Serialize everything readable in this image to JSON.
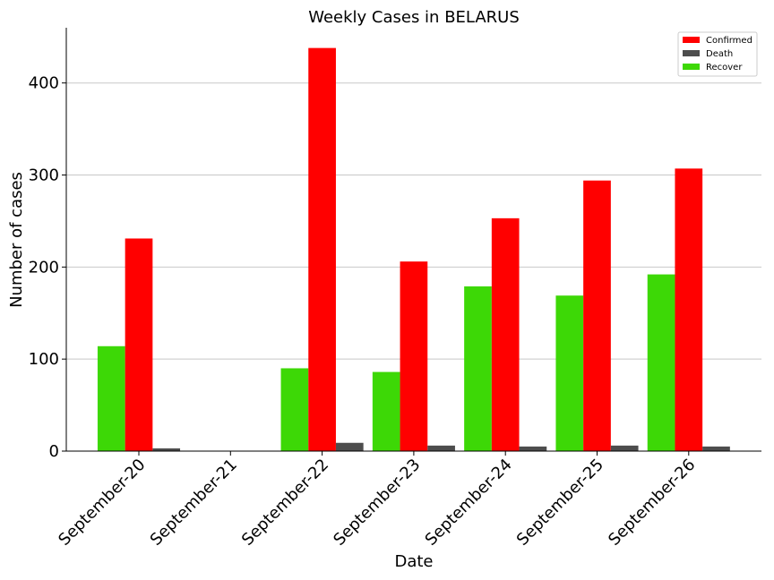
{
  "chart_data": {
    "type": "bar",
    "title": "Weekly Cases in BELARUS",
    "xlabel": "Date",
    "ylabel": "Number of cases",
    "categories": [
      "September-20",
      "September-21",
      "September-22",
      "September-23",
      "September-24",
      "September-25",
      "September-26"
    ],
    "series": [
      {
        "name": "Recover",
        "color": "#3dd806",
        "values": [
          114,
          0,
          90,
          86,
          179,
          169,
          192
        ]
      },
      {
        "name": "Confirmed",
        "color": "#ff0000",
        "values": [
          231,
          0,
          438,
          206,
          253,
          294,
          307
        ]
      },
      {
        "name": "Death",
        "color": "#4d4d4d",
        "values": [
          3,
          0,
          9,
          6,
          5,
          6,
          5
        ]
      }
    ],
    "legend_order": [
      "Confirmed",
      "Death",
      "Recover"
    ],
    "yticks": [
      0,
      100,
      200,
      300,
      400
    ],
    "ylim": [
      0,
      460
    ],
    "grid": "horizontal",
    "legend_position": "top-right"
  }
}
